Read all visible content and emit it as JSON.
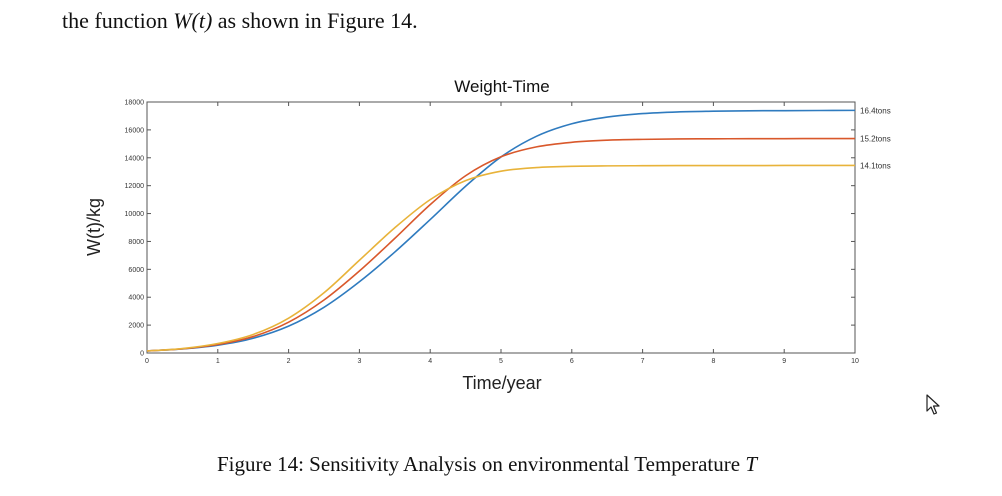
{
  "intro": {
    "prefix": "the function ",
    "math": "W(t)",
    "suffix": " as shown in Figure 14."
  },
  "caption": {
    "prefix": "Figure 14: Sensitivity Analysis on environmental Temperature ",
    "math": "T"
  },
  "chart_data": {
    "type": "line",
    "title": "Weight-Time",
    "xlabel": "Time/year",
    "ylabel": "W(t)/kg",
    "xlim": [
      0,
      10
    ],
    "ylim": [
      0,
      18000
    ],
    "xticks": [
      0,
      1,
      2,
      3,
      4,
      5,
      6,
      7,
      8,
      9,
      10
    ],
    "yticks": [
      0,
      2000,
      4000,
      6000,
      8000,
      10000,
      12000,
      14000,
      16000,
      18000
    ],
    "x": [
      0,
      0.5,
      1,
      1.5,
      2,
      2.5,
      3,
      3.5,
      4,
      4.5,
      5,
      5.5,
      6,
      6.5,
      7,
      7.5,
      8,
      8.5,
      9,
      9.5,
      10
    ],
    "series": [
      {
        "name": "16.4tons",
        "color": "#2f7bbf",
        "values": [
          150,
          290,
          560,
          1060,
          1930,
          3280,
          5110,
          7240,
          9570,
          11960,
          14060,
          15540,
          16440,
          16920,
          17170,
          17290,
          17340,
          17370,
          17380,
          17390,
          17400
        ]
      },
      {
        "name": "15.2tons",
        "color": "#d9582b",
        "values": [
          150,
          300,
          610,
          1180,
          2210,
          3800,
          5880,
          8220,
          10640,
          12710,
          14070,
          14780,
          15110,
          15260,
          15320,
          15350,
          15360,
          15370,
          15370,
          15380,
          15380
        ]
      },
      {
        "name": "14.1tons",
        "color": "#e8b33a",
        "values": [
          150,
          320,
          680,
          1330,
          2500,
          4320,
          6650,
          8980,
          11000,
          12360,
          13040,
          13300,
          13390,
          13420,
          13430,
          13440,
          13440,
          13440,
          13450,
          13450,
          13450
        ]
      }
    ],
    "legend": "line-end labels (right)",
    "grid": false
  },
  "colors": {
    "axis": "#555555",
    "background": "#ffffff"
  }
}
